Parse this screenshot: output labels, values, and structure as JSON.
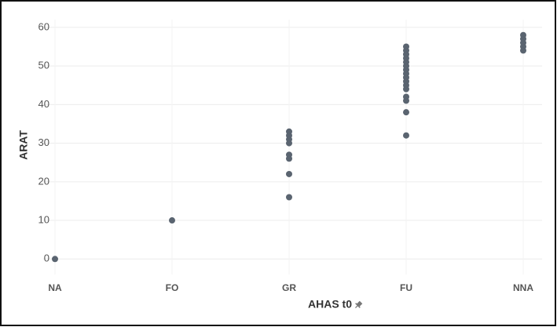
{
  "chart_data": {
    "type": "strip",
    "x_label": "AHAS t0",
    "y_label": "ARAT",
    "categories": [
      "NA",
      "FO",
      "GR",
      "FU",
      "NNA"
    ],
    "values": [
      [
        0
      ],
      [
        10
      ],
      [
        33,
        32,
        31,
        30,
        27,
        26,
        22,
        16
      ],
      [
        55,
        54,
        53,
        52,
        51,
        50,
        49,
        48,
        47,
        46,
        45,
        44,
        42,
        41,
        38,
        32
      ],
      [
        58,
        57,
        56,
        55,
        54
      ]
    ],
    "color": "#5a6470",
    "ylim": [
      -4,
      62
    ],
    "yticks": [
      0,
      10,
      20,
      30,
      40,
      50,
      60
    ],
    "grid": true
  }
}
